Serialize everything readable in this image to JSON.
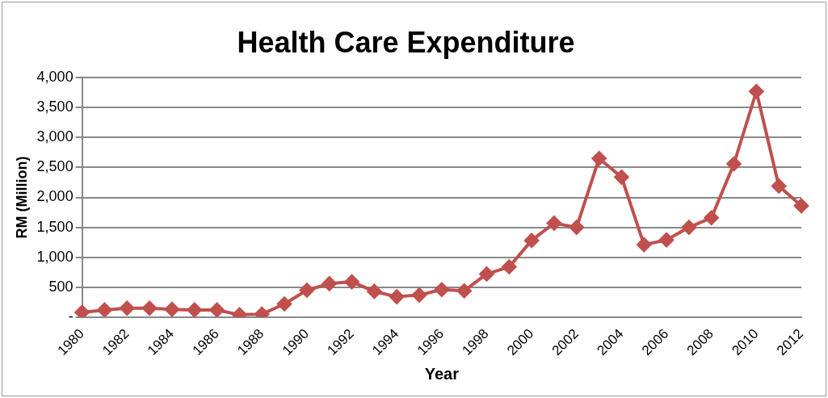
{
  "chart_data": {
    "type": "line",
    "title": "Health Care Expenditure",
    "xlabel": "Year",
    "ylabel": "RM (Million)",
    "categories": [
      "1980",
      null,
      "1982",
      null,
      "1984",
      null,
      "1986",
      null,
      "1988",
      null,
      "1990",
      null,
      "1992",
      null,
      "1994",
      null,
      "1996",
      null,
      "1998",
      null,
      "2000",
      null,
      "2002",
      null,
      "2004",
      null,
      "2006",
      null,
      "2008",
      null,
      "2010",
      null,
      "2012"
    ],
    "series": [
      {
        "color": "#c0504d",
        "values": [
          80,
          120,
          150,
          150,
          130,
          120,
          120,
          40,
          50,
          220,
          450,
          560,
          590,
          430,
          340,
          370,
          460,
          440,
          720,
          840,
          1280,
          1570,
          1500,
          2650,
          2340,
          1210,
          1290,
          1500,
          1660,
          2560,
          3770,
          2190,
          1860
        ]
      }
    ],
    "ylim": [
      0,
      4000
    ],
    "yticks": [
      {
        "value": 0,
        "label": "-"
      },
      {
        "value": 500,
        "label": "500"
      },
      {
        "value": 1000,
        "label": "1,000"
      },
      {
        "value": 1500,
        "label": "1,500"
      },
      {
        "value": 2000,
        "label": "2,000"
      },
      {
        "value": 2500,
        "label": "2,500"
      },
      {
        "value": 3000,
        "label": "3,000"
      },
      {
        "value": 3500,
        "label": "3,500"
      },
      {
        "value": 4000,
        "label": "4,000"
      }
    ],
    "grid": "y",
    "legend": false,
    "marker": "diamond",
    "line_style": "solid"
  }
}
